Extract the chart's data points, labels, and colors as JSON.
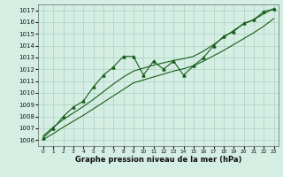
{
  "xlabel": "Graphe pression niveau de la mer (hPa)",
  "background_color": "#d4eee4",
  "grid_color": "#b8d8cc",
  "line_color": "#1a5c1a",
  "xlim": [
    -0.5,
    23.5
  ],
  "ylim": [
    1005.5,
    1017.5
  ],
  "yticks": [
    1006,
    1007,
    1008,
    1009,
    1010,
    1011,
    1012,
    1013,
    1014,
    1015,
    1016,
    1017
  ],
  "xticks": [
    0,
    1,
    2,
    3,
    4,
    5,
    6,
    7,
    8,
    9,
    10,
    11,
    12,
    13,
    14,
    15,
    16,
    17,
    18,
    19,
    20,
    21,
    22,
    23
  ],
  "main_series": [
    1006.2,
    1007.0,
    1008.0,
    1008.8,
    1009.3,
    1010.5,
    1011.5,
    1012.2,
    1013.1,
    1013.1,
    1011.5,
    1012.7,
    1012.0,
    1012.7,
    1011.5,
    1012.3,
    1013.0,
    1014.0,
    1014.8,
    1015.2,
    1015.9,
    1016.2,
    1016.9,
    1017.1
  ],
  "lower_line": [
    1006.05,
    1006.55,
    1007.1,
    1007.6,
    1008.1,
    1008.65,
    1009.2,
    1009.75,
    1010.3,
    1010.85,
    1011.1,
    1011.35,
    1011.6,
    1011.85,
    1012.05,
    1012.3,
    1012.7,
    1013.15,
    1013.6,
    1014.1,
    1014.6,
    1015.1,
    1015.65,
    1016.3
  ],
  "upper_line": [
    1006.35,
    1007.1,
    1007.75,
    1008.3,
    1008.85,
    1009.45,
    1010.1,
    1010.75,
    1011.35,
    1011.85,
    1012.1,
    1012.35,
    1012.55,
    1012.75,
    1012.9,
    1013.1,
    1013.55,
    1014.1,
    1014.7,
    1015.3,
    1015.85,
    1016.2,
    1016.7,
    1017.15
  ]
}
